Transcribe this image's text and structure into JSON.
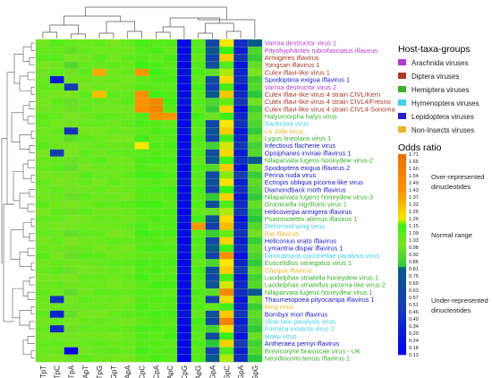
{
  "chart_data": {
    "type": "heatmap",
    "columns": [
      "TpT",
      "TpC",
      "TpA",
      "ApT",
      "TpG",
      "GpT",
      "ApA",
      "CpC",
      "CpA",
      "ApC",
      "CpG",
      "ApG",
      "GpA",
      "GpC",
      "GpA",
      "GpG"
    ],
    "rows": [
      {
        "name": "Varroa destructor virus 1",
        "group": "Arachnida viruses"
      },
      {
        "name": "Pityohyphantes rubrofasciatus iflavirus",
        "group": "Arachnida viruses"
      },
      {
        "name": "Armigeres iflavirus",
        "group": "Diptera viruses"
      },
      {
        "name": "Yongsan iflavirus 1",
        "group": "Diptera viruses"
      },
      {
        "name": "Culex iflavi-like virus 1",
        "group": "Diptera viruses"
      },
      {
        "name": "Spodoptera exigua iflavirus 1",
        "group": "Lepidoptera viruses"
      },
      {
        "name": "Varroa destructor virus 2",
        "group": "Arachnida viruses"
      },
      {
        "name": "Culex iflavi-like virus 4 strain CIVL/Kern",
        "group": "Diptera viruses"
      },
      {
        "name": "Culex iflavi-like virus 4 strain CIVL4/Fresno",
        "group": "Diptera viruses"
      },
      {
        "name": "Culex iflavi-like virus 4 strain CIVL4-Sonoma",
        "group": "Diptera viruses"
      },
      {
        "name": "Halyomorpha halys virus",
        "group": "Hemiptera viruses"
      },
      {
        "name": "Sacbrood virus",
        "group": "Hymenoptera viruses"
      },
      {
        "name": "La Jolla virus",
        "group": "Non-Insects viruses"
      },
      {
        "name": "Lygus lineolaris virus 1",
        "group": "Hemiptera viruses"
      },
      {
        "name": "Infectious flacherie virus",
        "group": "Lepidoptera viruses"
      },
      {
        "name": "Opsiphanes invirae iflavirus 1",
        "group": "Lepidoptera viruses"
      },
      {
        "name": "Nilaparvata lugens honeydew virus-2",
        "group": "Hemiptera viruses"
      },
      {
        "name": "Spodoptera exigua iflavirus 2",
        "group": "Lepidoptera viruses"
      },
      {
        "name": "Perina nuda virus",
        "group": "Lepidoptera viruses"
      },
      {
        "name": "Ectropis obliqua picorna-like virus",
        "group": "Lepidoptera viruses"
      },
      {
        "name": "Diamondback moth iflavirus",
        "group": "Lepidoptera viruses"
      },
      {
        "name": "Nilaparvata lugens honeydew virus-3",
        "group": "Hemiptera viruses"
      },
      {
        "name": "Graminella nigrifrons virus 1",
        "group": "Hemiptera viruses"
      },
      {
        "name": "Helicoverpa armigera iflavirus",
        "group": "Lepidoptera viruses"
      },
      {
        "name": "Psammotettix alienus iflavirus 1",
        "group": "Hemiptera viruses"
      },
      {
        "name": "Deformed wing virus",
        "group": "Hymenoptera viruses"
      },
      {
        "name": "Bat iflavirus",
        "group": "Non-Insects viruses"
      },
      {
        "name": "Heliconius erato iflavirus",
        "group": "Lepidoptera viruses"
      },
      {
        "name": "Lymantria dispar iflavirus 1",
        "group": "Lepidoptera viruses"
      },
      {
        "name": "Dinocampus coccinellae paralysis virus",
        "group": "Hymenoptera viruses"
      },
      {
        "name": "Euscelidius variegatus virus 1",
        "group": "Hemiptera viruses"
      },
      {
        "name": "Chequa iflavirus",
        "group": "Non-Insects viruses"
      },
      {
        "name": "Laodelphax striatella honeydew virus 1",
        "group": "Hemiptera viruses"
      },
      {
        "name": "Laodelphax striatellus picorna-like virus 2",
        "group": "Hemiptera viruses"
      },
      {
        "name": "Nilaparvata lugens honeydew virus 1",
        "group": "Hemiptera viruses"
      },
      {
        "name": "Thaumetopoea pityocampa iflavirus 1",
        "group": "Lepidoptera viruses"
      },
      {
        "name": "King virus",
        "group": "Non-Insects viruses"
      },
      {
        "name": "Bombyx mori iflavirus",
        "group": "Lepidoptera viruses"
      },
      {
        "name": "Slow bee paralysis virus",
        "group": "Hymenoptera viruses"
      },
      {
        "name": "Formica exsecta virus 2",
        "group": "Hymenoptera viruses"
      },
      {
        "name": "Moku virus",
        "group": "Hymenoptera viruses"
      },
      {
        "name": "Antheraea pernyi iflavirus",
        "group": "Lepidoptera viruses"
      },
      {
        "name": "Brevicoryne brassicae virus - UK",
        "group": "Hemiptera viruses"
      },
      {
        "name": "Nesidiocoris tenuis iflavirus 1",
        "group": "Hemiptera viruses"
      }
    ],
    "column_profiles": [
      [
        1.02,
        1.05,
        1.08,
        1.0,
        0.98,
        1.04,
        1.06,
        1.03,
        1.01,
        0.99,
        1.07,
        1.05,
        1.02,
        1.04,
        1.08,
        1.0,
        1.03,
        1.05,
        1.01,
        1.06,
        1.04,
        1.02,
        1.07,
        1.0,
        1.05,
        1.03,
        1.06,
        1.01,
        1.04,
        1.08,
        1.02,
        1.05,
        1.0,
        1.03,
        1.06,
        1.04,
        1.01,
        1.07,
        1.02,
        1.05,
        1.03,
        1.06,
        1.04,
        1.02
      ],
      [
        1.1,
        1.05,
        1.08,
        1.02,
        1.06,
        0.3,
        1.04,
        1.0,
        1.07,
        1.03,
        1.05,
        1.01,
        1.06,
        1.04,
        1.02,
        0.55,
        1.05,
        1.08,
        1.03,
        1.0,
        1.06,
        1.04,
        1.02,
        1.07,
        1.05,
        1.01,
        1.04,
        1.06,
        1.03,
        1.0,
        1.05,
        1.08,
        1.02,
        1.06,
        1.04,
        0.45,
        1.03,
        0.35,
        1.05,
        0.4,
        1.02,
        1.06,
        1.04,
        1.0
      ],
      [
        1.05,
        0.95,
        1.0,
        0.92,
        0.98,
        1.02,
        0.5,
        1.0,
        0.96,
        0.97,
        1.0,
        0.99,
        0.45,
        0.94,
        1.01,
        1.0,
        0.97,
        0.95,
        0.99,
        1.02,
        0.98,
        0.96,
        1.0,
        0.97,
        1.01,
        0.99,
        0.95,
        1.0,
        0.98,
        0.96,
        1.02,
        0.97,
        1.0,
        0.99,
        0.95,
        1.01,
        0.98,
        0.96,
        1.0,
        0.97,
        0.99,
        1.02,
        0.1,
        0.97
      ],
      [
        1.04,
        1.06,
        1.02,
        1.05,
        1.08,
        1.03,
        1.0,
        1.07,
        1.04,
        1.06,
        1.02,
        1.05,
        1.01,
        1.07,
        1.03,
        1.06,
        1.04,
        1.0,
        1.08,
        1.05,
        1.02,
        1.06,
        1.03,
        1.07,
        1.01,
        1.04,
        1.06,
        1.02,
        1.05,
        1.08,
        1.03,
        1.0,
        1.06,
        1.04,
        1.02,
        1.07,
        1.05,
        1.01,
        1.04,
        1.06,
        1.03,
        1.05,
        1.02,
        1.07
      ],
      [
        1.06,
        1.03,
        1.08,
        1.05,
        1.35,
        1.02,
        1.04,
        1.3,
        1.06,
        1.03,
        1.07,
        1.05,
        1.01,
        1.04,
        1.06,
        1.02,
        1.08,
        1.03,
        1.05,
        1.0,
        1.06,
        1.04,
        1.07,
        1.02,
        1.05,
        1.03,
        1.06,
        1.04,
        1.01,
        1.08,
        1.05,
        1.02,
        1.06,
        1.04,
        1.07,
        1.03,
        1.05,
        1.0,
        1.06,
        1.04,
        1.02,
        1.07,
        1.05,
        1.03
      ],
      [
        1.0,
        1.04,
        1.02,
        1.06,
        1.03,
        1.05,
        1.01,
        1.07,
        1.04,
        1.02,
        1.06,
        1.03,
        1.05,
        1.0,
        1.04,
        1.06,
        1.02,
        1.05,
        1.03,
        1.07,
        1.01,
        1.04,
        1.06,
        1.02,
        1.05,
        1.03,
        1.0,
        1.06,
        1.04,
        1.02,
        1.07,
        1.05,
        1.03,
        1.01,
        1.06,
        1.04,
        1.02,
        1.05,
        1.03,
        1.07,
        1.0,
        1.04,
        1.06,
        1.02
      ],
      [
        1.05,
        1.02,
        1.07,
        1.04,
        1.06,
        1.01,
        1.03,
        1.05,
        1.08,
        1.02,
        1.04,
        1.06,
        1.03,
        1.0,
        1.05,
        1.07,
        1.02,
        1.04,
        1.06,
        1.03,
        1.05,
        1.01,
        1.08,
        1.04,
        1.02,
        1.06,
        1.03,
        1.05,
        1.0,
        1.04,
        1.07,
        1.02,
        1.06,
        1.03,
        1.05,
        1.01,
        1.04,
        1.08,
        1.02,
        1.06,
        1.03,
        1.05,
        1.04,
        1.0
      ],
      [
        1.12,
        1.1,
        1.08,
        1.15,
        1.4,
        1.06,
        1.09,
        1.45,
        1.42,
        1.44,
        1.1,
        1.12,
        1.07,
        1.14,
        1.2,
        1.08,
        1.11,
        1.09,
        1.13,
        1.06,
        1.1,
        1.08,
        1.12,
        1.09,
        1.07,
        1.11,
        1.14,
        1.08,
        1.1,
        1.06,
        1.12,
        1.09,
        1.13,
        1.07,
        1.1,
        1.08,
        1.11,
        1.09,
        1.06,
        1.12,
        1.1,
        1.08,
        1.13,
        1.07
      ],
      [
        1.08,
        1.12,
        1.06,
        1.1,
        1.14,
        1.09,
        1.07,
        1.13,
        1.5,
        1.55,
        1.45,
        1.08,
        1.11,
        1.06,
        1.1,
        1.09,
        1.12,
        1.07,
        1.14,
        1.08,
        1.1,
        1.06,
        1.13,
        1.09,
        1.11,
        1.07,
        1.1,
        1.08,
        1.12,
        1.06,
        1.09,
        1.11,
        1.07,
        1.13,
        1.08,
        1.1,
        1.06,
        1.12,
        1.09,
        1.11,
        1.07,
        1.1,
        1.08,
        1.12
      ],
      [
        1.1,
        1.06,
        1.12,
        1.08,
        1.09,
        1.11,
        1.07,
        1.1,
        1.13,
        1.08,
        1.4,
        1.06,
        1.1,
        1.09,
        1.12,
        1.07,
        1.11,
        1.08,
        1.1,
        1.06,
        1.13,
        1.09,
        1.07,
        1.11,
        1.08,
        1.1,
        1.12,
        1.06,
        1.09,
        1.08,
        1.11,
        1.07,
        1.1,
        1.12,
        1.06,
        1.09,
        1.08,
        1.11,
        1.07,
        1.1,
        1.13,
        1.06,
        1.09,
        1.08
      ],
      [
        0.2,
        0.18,
        0.22,
        0.15,
        0.25,
        0.19,
        0.16,
        0.21,
        0.24,
        0.17,
        0.2,
        0.18,
        0.23,
        0.15,
        0.19,
        0.22,
        0.16,
        0.2,
        0.18,
        0.24,
        0.17,
        0.21,
        0.19,
        0.15,
        0.22,
        0.18,
        0.2,
        0.16,
        0.23,
        0.19,
        0.17,
        0.21,
        0.15,
        0.2,
        0.18,
        0.22,
        0.16,
        0.24,
        0.19,
        0.17,
        0.21,
        0.18,
        0.2,
        0.16
      ],
      [
        1.08,
        1.1,
        1.06,
        1.09,
        1.12,
        1.07,
        1.11,
        1.08,
        1.1,
        1.06,
        1.13,
        1.09,
        1.07,
        1.11,
        1.08,
        1.1,
        1.06,
        1.12,
        1.09,
        1.07,
        1.11,
        1.08,
        1.1,
        1.06,
        1.13,
        1.4,
        1.07,
        1.11,
        1.08,
        1.1,
        1.06,
        1.12,
        1.09,
        1.07,
        1.11,
        1.08,
        1.1,
        1.06,
        1.13,
        1.09,
        1.07,
        1.11,
        1.08,
        1.1
      ],
      [
        0.6,
        0.75,
        0.55,
        0.7,
        0.95,
        0.65,
        0.5,
        0.8,
        0.9,
        0.85,
        0.98,
        0.6,
        0.72,
        0.58,
        0.88,
        0.66,
        0.78,
        0.92,
        0.62,
        0.7,
        0.55,
        0.84,
        0.68,
        0.96,
        0.74,
        0.52,
        0.86,
        0.64,
        0.8,
        0.58,
        0.9,
        0.7,
        0.62,
        0.76,
        0.94,
        0.56,
        1.05,
        0.72,
        0.6,
        0.88,
        0.66,
        0.82,
        0.54,
        0.78
      ],
      [
        1.2,
        1.15,
        1.25,
        1.1,
        1.18,
        1.22,
        1.12,
        1.28,
        1.16,
        1.24,
        1.14,
        1.2,
        1.26,
        1.11,
        1.19,
        1.23,
        1.13,
        1.27,
        1.17,
        1.21,
        1.15,
        1.25,
        1.1,
        1.18,
        1.22,
        1.3,
        1.16,
        1.24,
        1.14,
        1.45,
        1.2,
        1.26,
        1.11,
        1.19,
        1.5,
        1.23,
        1.13,
        1.27,
        1.55,
        1.21,
        1.15,
        1.25,
        1.1,
        1.18
      ],
      [
        0.4,
        0.3,
        0.45,
        0.25,
        0.35,
        0.42,
        0.28,
        0.38,
        0.48,
        0.22,
        0.36,
        0.44,
        0.26,
        0.34,
        0.46,
        0.3,
        0.4,
        0.24,
        0.5,
        0.32,
        0.42,
        0.28,
        0.38,
        0.46,
        0.26,
        0.34,
        0.44,
        0.3,
        0.4,
        0.22,
        0.36,
        0.48,
        0.28,
        0.38,
        0.42,
        0.26,
        0.34,
        0.46,
        0.3,
        0.4,
        0.24,
        0.5,
        0.32,
        0.42
      ],
      [
        0.8,
        0.9,
        0.85,
        0.95,
        1.0,
        0.88,
        0.92,
        0.82,
        0.98,
        0.86,
        0.94,
        0.9,
        0.84,
        0.96,
        0.88,
        0.92,
        0.8,
        0.98,
        0.86,
        0.94,
        0.9,
        0.84,
        0.96,
        0.88,
        0.82,
        0.92,
        0.98,
        0.86,
        0.94,
        0.9,
        0.84,
        0.96,
        0.88,
        0.92,
        0.8,
        0.98,
        0.86,
        0.94,
        0.9,
        0.84,
        0.96,
        0.88,
        0.92,
        0.82
      ]
    ],
    "colorbar": {
      "title": "Odds ratio",
      "ticks": [
        "1.71",
        "1.65",
        "1.60",
        "1.54",
        "1.49",
        "1.43",
        "1.37",
        "1.32",
        "1.26",
        "1.20",
        "1.15",
        "1.09",
        "1.03",
        "0.98",
        "0.92",
        "0.86",
        "0.81",
        "0.75",
        "0.69",
        "0.63",
        "0.57",
        "0.51",
        "0.46",
        "0.40",
        "0.34",
        "0.29",
        "0.24",
        "0.18",
        "0.13"
      ],
      "over_label": "Over-represented dinucleotides",
      "normal_label": "Normal range",
      "under_label": "Under-represented dinucleotides"
    },
    "legend": {
      "title": "Host-taxa-groups",
      "entries": [
        {
          "label": "Arachnida viruses",
          "color": "#b03cd0"
        },
        {
          "label": "Diptera viruses",
          "color": "#a83a28"
        },
        {
          "label": "Hemiptera viruses",
          "color": "#3ab02c"
        },
        {
          "label": "Hymenoptera viruses",
          "color": "#40d0e8"
        },
        {
          "label": "Lepidoptera viruses",
          "color": "#2020c8"
        },
        {
          "label": "Non-Insects viruses",
          "color": "#e8b828"
        }
      ]
    }
  }
}
